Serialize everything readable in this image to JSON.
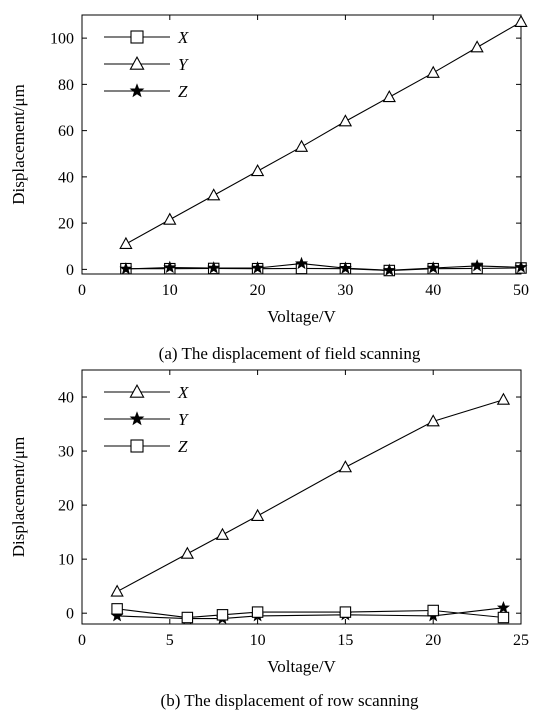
{
  "chart_data": [
    {
      "type": "line",
      "caption": "(a) The displacement of field scanning",
      "xlabel": "Voltage/V",
      "ylabel": "Displacement/μm",
      "xlim": [
        0,
        50
      ],
      "ylim": [
        -2,
        110
      ],
      "x_ticks": [
        0,
        10,
        20,
        30,
        40,
        50
      ],
      "y_ticks": [
        0,
        20,
        40,
        60,
        80,
        100
      ],
      "grid": false,
      "legend_position": "top-left",
      "series": [
        {
          "name": "X",
          "marker": "square",
          "x": [
            5,
            10,
            15,
            20,
            25,
            30,
            35,
            40,
            45,
            50
          ],
          "y": [
            0.3,
            0.3,
            0.4,
            0.3,
            0.4,
            0.3,
            -0.5,
            0.3,
            0.4,
            0.6
          ]
        },
        {
          "name": "Y",
          "marker": "triangle",
          "x": [
            5,
            10,
            15,
            20,
            25,
            30,
            35,
            40,
            45,
            50
          ],
          "y": [
            11,
            21.5,
            32,
            42.5,
            53,
            64,
            74.5,
            85,
            96,
            107
          ]
        },
        {
          "name": "Z",
          "marker": "star",
          "x": [
            5,
            10,
            15,
            20,
            25,
            30,
            35,
            40,
            45,
            50
          ],
          "y": [
            0.2,
            0.8,
            0.6,
            0.6,
            2.5,
            0.5,
            -0.4,
            0.6,
            1.5,
            0.9
          ]
        }
      ]
    },
    {
      "type": "line",
      "caption": "(b) The displacement of row scanning",
      "xlabel": "Voltage/V",
      "ylabel": "Displacement/μm",
      "xlim": [
        0,
        25
      ],
      "ylim": [
        -2,
        45
      ],
      "x_ticks": [
        0,
        5,
        10,
        15,
        20,
        25
      ],
      "y_ticks": [
        0,
        10,
        20,
        30,
        40
      ],
      "grid": false,
      "legend_position": "top-left",
      "series": [
        {
          "name": "X",
          "marker": "triangle",
          "x": [
            2,
            6,
            8,
            10,
            15,
            20,
            24
          ],
          "y": [
            4,
            11,
            14.5,
            18,
            27,
            35.5,
            39.5
          ]
        },
        {
          "name": "Y",
          "marker": "star",
          "x": [
            2,
            6,
            8,
            10,
            15,
            20,
            24
          ],
          "y": [
            -0.5,
            -1,
            -1,
            -0.5,
            -0.3,
            -0.5,
            1
          ]
        },
        {
          "name": "Z",
          "marker": "square",
          "x": [
            2,
            6,
            8,
            10,
            15,
            20,
            24
          ],
          "y": [
            0.8,
            -0.8,
            -0.3,
            0.2,
            0.2,
            0.5,
            -0.8
          ]
        }
      ]
    }
  ]
}
